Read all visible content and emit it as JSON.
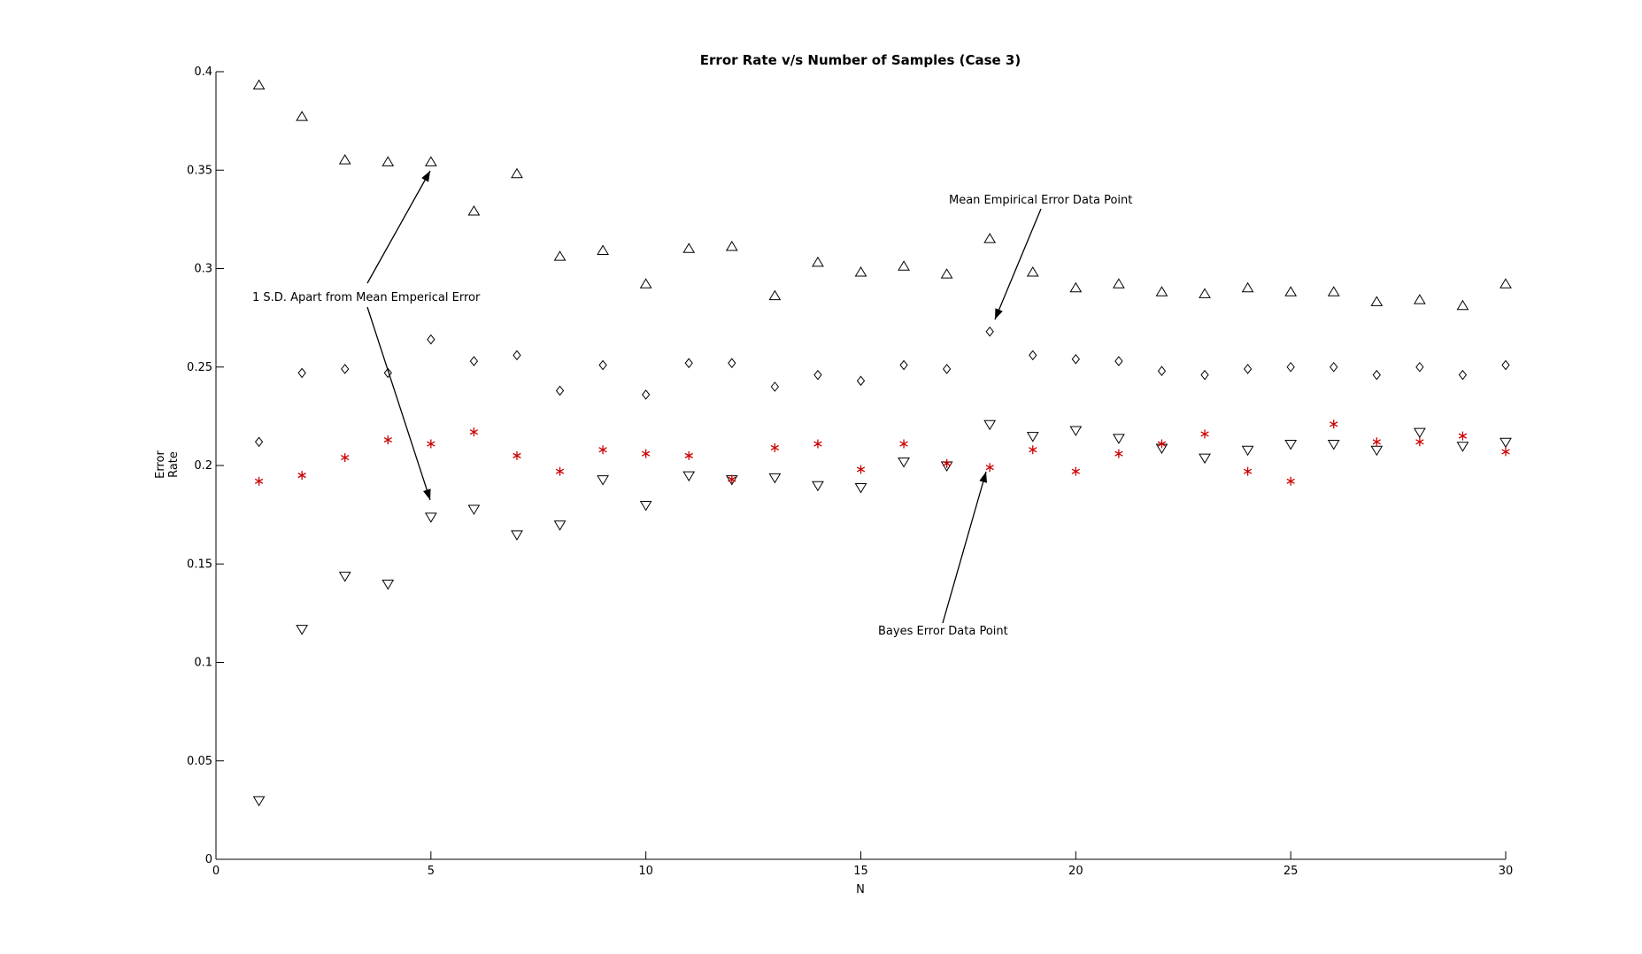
{
  "chart_data": {
    "type": "scatter",
    "title": "Error Rate v/s Number of Samples (Case 3)",
    "xlabel": "N",
    "ylabel": "Error Rate",
    "xlim": [
      0,
      30
    ],
    "ylim": [
      0,
      0.4
    ],
    "xticks": [
      "0",
      "5",
      "10",
      "15",
      "20",
      "25",
      "30"
    ],
    "yticks": [
      "0",
      "0.05",
      "0.1",
      "0.15",
      "0.2",
      "0.25",
      "0.3",
      "0.35",
      "0.4"
    ],
    "grid": false,
    "x": [
      1,
      2,
      3,
      4,
      5,
      6,
      7,
      8,
      9,
      10,
      11,
      12,
      13,
      14,
      15,
      16,
      17,
      18,
      19,
      20,
      21,
      22,
      23,
      24,
      25,
      26,
      27,
      28,
      29,
      30
    ],
    "series": [
      {
        "marker": "triangle-up",
        "color": "#000000",
        "values": [
          0.393,
          0.377,
          0.355,
          0.354,
          0.354,
          0.329,
          0.348,
          0.306,
          0.309,
          0.292,
          0.31,
          0.311,
          0.286,
          0.303,
          0.298,
          0.301,
          0.297,
          0.315,
          0.298,
          0.29,
          0.292,
          0.288,
          0.287,
          0.29,
          0.288,
          0.288,
          0.283,
          0.284,
          0.281,
          0.292
        ]
      },
      {
        "marker": "diamond",
        "color": "#000000",
        "values": [
          0.212,
          0.247,
          0.249,
          0.247,
          0.264,
          0.253,
          0.256,
          0.238,
          0.251,
          0.236,
          0.252,
          0.252,
          0.24,
          0.246,
          0.243,
          0.251,
          0.249,
          0.268,
          0.256,
          0.254,
          0.253,
          0.248,
          0.246,
          0.249,
          0.25,
          0.25,
          0.246,
          0.25,
          0.246,
          0.251
        ]
      },
      {
        "marker": "triangle-down",
        "color": "#000000",
        "values": [
          0.03,
          0.117,
          0.144,
          0.14,
          0.174,
          0.178,
          0.165,
          0.17,
          0.193,
          0.18,
          0.195,
          0.193,
          0.194,
          0.19,
          0.189,
          0.202,
          0.2,
          0.221,
          0.215,
          0.218,
          0.214,
          0.209,
          0.204,
          0.208,
          0.211,
          0.211,
          0.208,
          0.217,
          0.21,
          0.212
        ]
      },
      {
        "marker": "star",
        "color": "#cc0000",
        "values": [
          0.192,
          0.195,
          0.204,
          0.213,
          0.211,
          0.217,
          0.205,
          0.197,
          0.208,
          0.206,
          0.205,
          0.193,
          0.209,
          0.211,
          0.198,
          0.211,
          0.201,
          0.199,
          0.208,
          0.197,
          0.206,
          0.211,
          0.216,
          0.197,
          0.192,
          0.221,
          0.212,
          0.212,
          0.215,
          0.207
        ]
      }
    ],
    "annotations": [
      {
        "text": "1 S.D. Apart from Mean Emperical Error"
      },
      {
        "text": "Mean Empirical Error Data Point"
      },
      {
        "text": "Bayes Error Data Point"
      }
    ]
  }
}
